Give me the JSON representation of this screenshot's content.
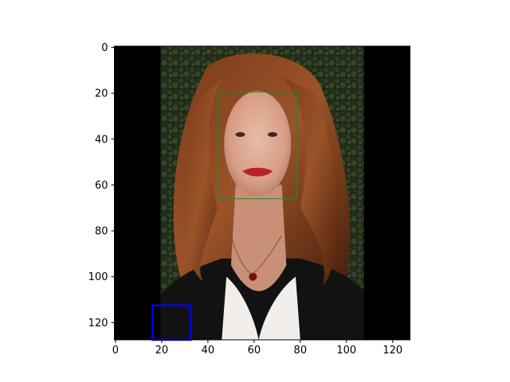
{
  "chart_data": {
    "type": "image",
    "title": "",
    "xlabel": "",
    "ylabel": "",
    "xlim": [
      -0.5,
      127.5
    ],
    "ylim": [
      127.5,
      -0.5
    ],
    "y_inverted": true,
    "x_ticks": [
      0,
      20,
      40,
      60,
      80,
      100,
      120
    ],
    "y_ticks": [
      0,
      20,
      40,
      60,
      80,
      100,
      120
    ],
    "image_content": {
      "content_x_range": [
        19.5,
        107.5
      ],
      "padding_color": "#000000"
    },
    "rectangles": [
      {
        "x": 44.5,
        "y": 19.5,
        "width": 34,
        "height": 46.5,
        "color": "#228b22",
        "stroke_width": 1
      },
      {
        "x": 16,
        "y": 112.5,
        "width": 16.5,
        "height": 15,
        "color": "#0000ff",
        "stroke_width": 2.5
      }
    ]
  }
}
